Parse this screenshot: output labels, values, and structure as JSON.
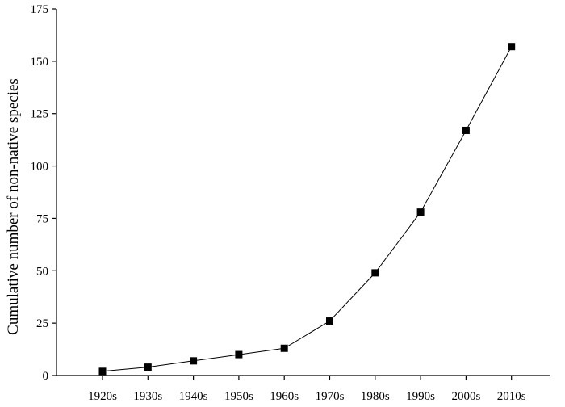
{
  "chart_data": {
    "type": "line",
    "title": "",
    "xlabel": "",
    "ylabel": "Cumulative number of non-native species",
    "categories": [
      "1920s",
      "1930s",
      "1940s",
      "1950s",
      "1960s",
      "1970s",
      "1980s",
      "1990s",
      "2000s",
      "2010s"
    ],
    "series": [
      {
        "values": [
          2,
          4,
          7,
          10,
          13,
          26,
          49,
          78,
          117,
          157
        ]
      }
    ],
    "ylim": [
      0,
      175
    ],
    "yticks": [
      0,
      25,
      50,
      75,
      100,
      125,
      150,
      175
    ],
    "marker": "square",
    "line_color": "#000000",
    "marker_color": "#000000",
    "grid": false,
    "legend": "none"
  }
}
